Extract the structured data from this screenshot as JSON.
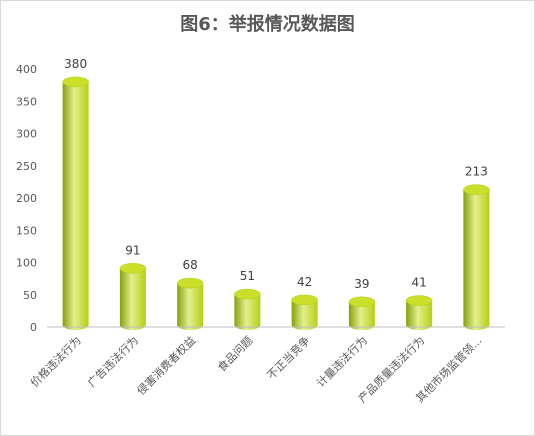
{
  "title": "图6：举报情况数据图",
  "colors": {
    "bar_light": "#e3ef8f",
    "bar_mid": "#b5cf15",
    "bar_dark": "#86a10a",
    "bar_top": "#c9df2a",
    "axis_text": "#595959",
    "axis_line": "#bfbfbf"
  },
  "chart_data": {
    "type": "bar",
    "title": "图6：举报情况数据图",
    "categories": [
      "价格违法行为",
      "广告违法行为",
      "侵害消费者权益",
      "食品问题",
      "不正当竞争",
      "计量违法行为",
      "产品质量违法行为",
      "其他市场监管领..."
    ],
    "values": [
      380,
      91,
      68,
      51,
      42,
      39,
      41,
      213
    ],
    "data_labels": [
      "380",
      "91",
      "68",
      "51",
      "42",
      "39",
      "41",
      "213"
    ],
    "y_ticks": [
      "0",
      "50",
      "100",
      "150",
      "200",
      "250",
      "300",
      "350",
      "400"
    ],
    "ylim": [
      0,
      400
    ],
    "xlabel": "",
    "ylabel": "",
    "grid": false,
    "legend": "none"
  }
}
